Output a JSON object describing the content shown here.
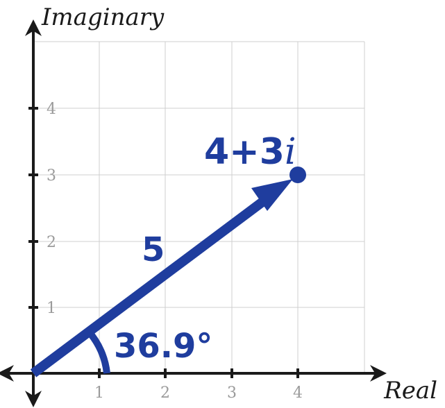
{
  "axes": {
    "x_title": "Real",
    "y_title": "Imaginary",
    "x_ticks": [
      "1",
      "2",
      "3",
      "4"
    ],
    "y_ticks": [
      "1",
      "2",
      "3",
      "4"
    ]
  },
  "vector": {
    "point_label_main": "4+3",
    "point_label_italic": "i",
    "real": 4,
    "imag": 3,
    "magnitude_label": "5",
    "angle_label": "36.9°"
  },
  "colors": {
    "vector": "#1f3d9e",
    "grid": "#cfcfcf",
    "axis": "#1a1a1a",
    "tick_label": "#9a9a9a"
  }
}
